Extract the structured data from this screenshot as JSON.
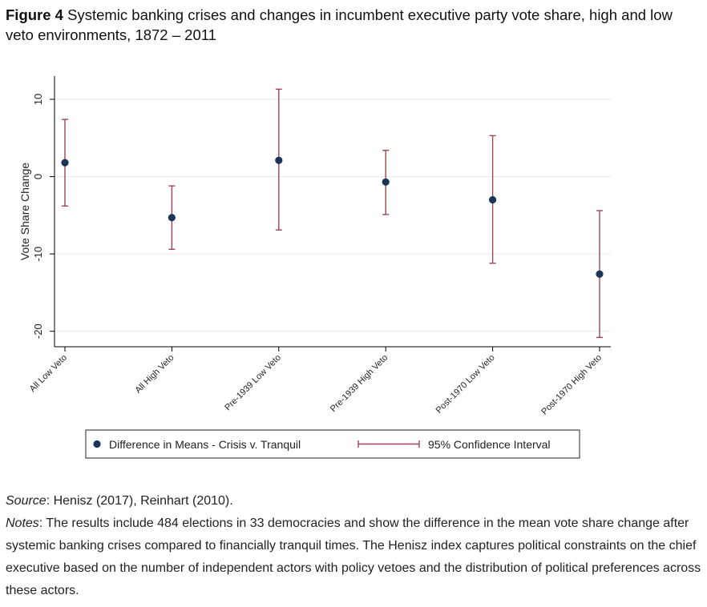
{
  "figure": {
    "label": "Figure 4",
    "title": "Systemic banking crises and changes in incumbent executive party vote share, high and low veto environments, 1872 – 2011"
  },
  "chart_data": {
    "type": "scatter",
    "subtype": "point-estimate-with-error-bars",
    "ylabel": "Vote Share Change",
    "xlabel": "",
    "ylim": [
      -22,
      13
    ],
    "yticks": [
      10,
      0,
      -10,
      -20
    ],
    "categories": [
      "All Low Veto",
      "All High Veto",
      "Pre-1939 Low Veto",
      "Pre-1939 High Veto",
      "Post-1970 Low Veto",
      "Post-1970 High Veto"
    ],
    "series": [
      {
        "name": "Difference in Means - Crisis v. Tranquil",
        "values": [
          1.8,
          -5.3,
          2.1,
          -0.7,
          -3.0,
          -12.6
        ]
      },
      {
        "name": "95% Confidence Interval",
        "lower": [
          -3.8,
          -9.4,
          -6.9,
          -4.9,
          -11.2,
          -20.8
        ],
        "upper": [
          7.4,
          -1.2,
          11.3,
          3.4,
          5.3,
          -4.4
        ]
      }
    ],
    "legend": {
      "position": "bottom",
      "entries": [
        "Difference in Means - Crisis v. Tranquil",
        "95% Confidence Interval"
      ]
    },
    "grid": true,
    "colors": {
      "point": "#1a3555",
      "ci": "#a04458",
      "grid": "#e6eef3",
      "axis": "#000000"
    }
  },
  "caption": {
    "source_label": "Source",
    "source_text": ": Henisz (2017), Reinhart (2010).",
    "notes_label": "Notes",
    "notes_text": ": The results include 484 elections in 33 democracies and show the difference in the mean vote share change after systemic banking crises compared to financially tranquil times. The Henisz index captures political constraints on the chief executive based on the number of independent actors with policy vetoes and the distribution of political preferences across these actors."
  }
}
